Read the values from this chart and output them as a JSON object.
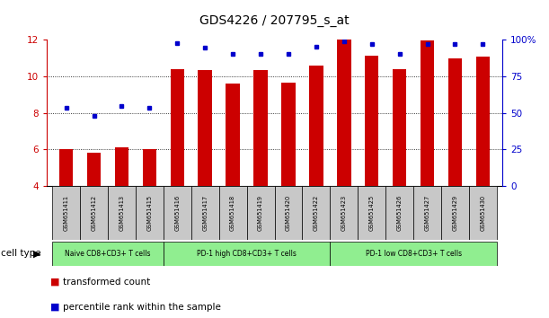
{
  "title": "GDS4226 / 207795_s_at",
  "samples": [
    "GSM651411",
    "GSM651412",
    "GSM651413",
    "GSM651415",
    "GSM651416",
    "GSM651417",
    "GSM651418",
    "GSM651419",
    "GSM651420",
    "GSM651422",
    "GSM651423",
    "GSM651425",
    "GSM651426",
    "GSM651427",
    "GSM651429",
    "GSM651430"
  ],
  "red_values": [
    6.0,
    5.8,
    6.1,
    6.0,
    10.4,
    10.35,
    9.6,
    10.35,
    9.65,
    10.6,
    12.0,
    11.15,
    10.4,
    11.95,
    11.0,
    11.1
  ],
  "blue_values": [
    8.3,
    7.85,
    8.4,
    8.3,
    11.8,
    11.55,
    11.25,
    11.25,
    11.25,
    11.6,
    11.9,
    11.75,
    11.25,
    11.75,
    11.75,
    11.75
  ],
  "ymin": 4,
  "ymax": 12,
  "right_yticks": [
    0,
    25,
    50,
    75,
    100
  ],
  "right_yticklabels": [
    "0",
    "25",
    "50",
    "75",
    "100%"
  ],
  "left_yticks": [
    4,
    6,
    8,
    10,
    12
  ],
  "dotted_lines": [
    6,
    8,
    10
  ],
  "cell_groups": [
    {
      "label": "Naive CD8+CD3+ T cells",
      "start": 0,
      "end": 4,
      "color": "#90EE90"
    },
    {
      "label": "PD-1 high CD8+CD3+ T cells",
      "start": 4,
      "end": 10,
      "color": "#90EE90"
    },
    {
      "label": "PD-1 low CD8+CD3+ T cells",
      "start": 10,
      "end": 16,
      "color": "#90EE90"
    }
  ],
  "cell_type_label": "cell type",
  "bar_color": "#CC0000",
  "dot_color": "#0000CC",
  "axis_color_left": "#CC0000",
  "axis_color_right": "#0000CC",
  "legend_red": "transformed count",
  "legend_blue": "percentile rank within the sample",
  "bar_width": 0.5,
  "sample_box_color": "#C8C8C8",
  "title_fontsize": 10,
  "tick_fontsize": 7.5,
  "sample_fontsize": 4.8,
  "cell_fontsize": 5.5,
  "legend_fontsize": 7.5
}
